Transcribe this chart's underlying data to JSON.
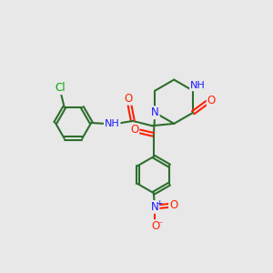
{
  "background_color": "#e8e8e8",
  "bond_color": "#2d6e2d",
  "atom_colors": {
    "N": "#1a1aff",
    "O": "#ff2200",
    "Cl": "#00aa00",
    "H": "#888888"
  },
  "figsize": [
    3.0,
    3.0
  ],
  "dpi": 100
}
